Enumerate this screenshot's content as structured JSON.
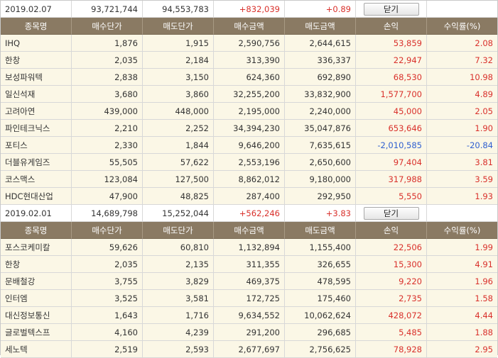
{
  "columns": [
    "종목명",
    "매수단가",
    "매도단가",
    "매수금액",
    "매도금액",
    "손익",
    "수익률(%)"
  ],
  "close_label": "닫기",
  "colors": {
    "header_bg": "#8a7a63",
    "row_bg": "#fbf7e6",
    "profit": "#d9302b",
    "loss": "#2f5fd0"
  },
  "groups": [
    {
      "summary": {
        "date": "2019.02.07",
        "buy_total": "93,721,744",
        "sell_total": "94,553,783",
        "pnl": "+832,039",
        "rate": "+0.89"
      },
      "rows": [
        {
          "name": "IHQ",
          "buy_price": "1,876",
          "sell_price": "1,915",
          "buy_amount": "2,590,756",
          "sell_amount": "2,644,615",
          "pnl": "53,859",
          "rate": "2.08",
          "sign": "up"
        },
        {
          "name": "한창",
          "buy_price": "2,035",
          "sell_price": "2,184",
          "buy_amount": "313,390",
          "sell_amount": "336,337",
          "pnl": "22,947",
          "rate": "7.32",
          "sign": "up"
        },
        {
          "name": "보성파워텍",
          "buy_price": "2,838",
          "sell_price": "3,150",
          "buy_amount": "624,360",
          "sell_amount": "692,890",
          "pnl": "68,530",
          "rate": "10.98",
          "sign": "up"
        },
        {
          "name": "일신석재",
          "buy_price": "3,680",
          "sell_price": "3,860",
          "buy_amount": "32,255,200",
          "sell_amount": "33,832,900",
          "pnl": "1,577,700",
          "rate": "4.89",
          "sign": "up"
        },
        {
          "name": "고려아연",
          "buy_price": "439,000",
          "sell_price": "448,000",
          "buy_amount": "2,195,000",
          "sell_amount": "2,240,000",
          "pnl": "45,000",
          "rate": "2.05",
          "sign": "up"
        },
        {
          "name": "파인테크닉스",
          "buy_price": "2,210",
          "sell_price": "2,252",
          "buy_amount": "34,394,230",
          "sell_amount": "35,047,876",
          "pnl": "653,646",
          "rate": "1.90",
          "sign": "up"
        },
        {
          "name": "포티스",
          "buy_price": "2,330",
          "sell_price": "1,844",
          "buy_amount": "9,646,200",
          "sell_amount": "7,635,615",
          "pnl": "-2,010,585",
          "rate": "-20.84",
          "sign": "down"
        },
        {
          "name": "더블유게임즈",
          "buy_price": "55,505",
          "sell_price": "57,622",
          "buy_amount": "2,553,196",
          "sell_amount": "2,650,600",
          "pnl": "97,404",
          "rate": "3.81",
          "sign": "up"
        },
        {
          "name": "코스맥스",
          "buy_price": "123,084",
          "sell_price": "127,500",
          "buy_amount": "8,862,012",
          "sell_amount": "9,180,000",
          "pnl": "317,988",
          "rate": "3.59",
          "sign": "up"
        },
        {
          "name": "HDC현대산업",
          "buy_price": "47,900",
          "sell_price": "48,825",
          "buy_amount": "287,400",
          "sell_amount": "292,950",
          "pnl": "5,550",
          "rate": "1.93",
          "sign": "up"
        }
      ]
    },
    {
      "summary": {
        "date": "2019.02.01",
        "buy_total": "14,689,798",
        "sell_total": "15,252,044",
        "pnl": "+562,246",
        "rate": "+3.83"
      },
      "rows": [
        {
          "name": "포스코케미칼",
          "buy_price": "59,626",
          "sell_price": "60,810",
          "buy_amount": "1,132,894",
          "sell_amount": "1,155,400",
          "pnl": "22,506",
          "rate": "1.99",
          "sign": "up"
        },
        {
          "name": "한창",
          "buy_price": "2,035",
          "sell_price": "2,135",
          "buy_amount": "311,355",
          "sell_amount": "326,655",
          "pnl": "15,300",
          "rate": "4.91",
          "sign": "up"
        },
        {
          "name": "문배철강",
          "buy_price": "3,755",
          "sell_price": "3,829",
          "buy_amount": "469,375",
          "sell_amount": "478,595",
          "pnl": "9,220",
          "rate": "1.96",
          "sign": "up"
        },
        {
          "name": "인터엠",
          "buy_price": "3,525",
          "sell_price": "3,581",
          "buy_amount": "172,725",
          "sell_amount": "175,460",
          "pnl": "2,735",
          "rate": "1.58",
          "sign": "up"
        },
        {
          "name": "대신정보통신",
          "buy_price": "1,643",
          "sell_price": "1,716",
          "buy_amount": "9,634,552",
          "sell_amount": "10,062,624",
          "pnl": "428,072",
          "rate": "4.44",
          "sign": "up"
        },
        {
          "name": "글로벌텍스프",
          "buy_price": "4,160",
          "sell_price": "4,239",
          "buy_amount": "291,200",
          "sell_amount": "296,685",
          "pnl": "5,485",
          "rate": "1.88",
          "sign": "up"
        },
        {
          "name": "세노텍",
          "buy_price": "2,519",
          "sell_price": "2,593",
          "buy_amount": "2,677,697",
          "sell_amount": "2,756,625",
          "pnl": "78,928",
          "rate": "2.95",
          "sign": "up"
        }
      ]
    }
  ]
}
